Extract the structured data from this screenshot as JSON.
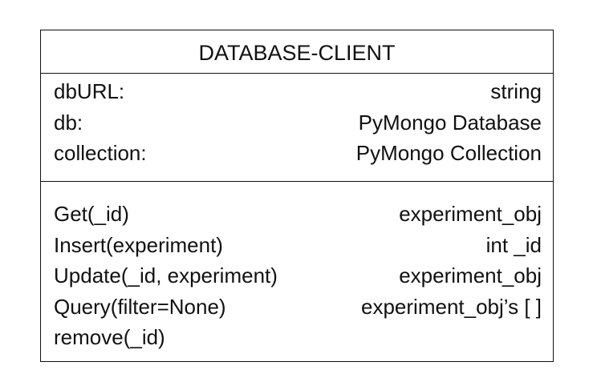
{
  "class_name": "DATABASE-CLIENT",
  "attributes": [
    {
      "name": "dbURL:",
      "type": "string"
    },
    {
      "name": "db:",
      "type": "PyMongo Database"
    },
    {
      "name": "collection:",
      "type": "PyMongo Collection"
    }
  ],
  "methods": [
    {
      "name": "Get(_id)",
      "returns": "experiment_obj"
    },
    {
      "name": "Insert(experiment)",
      "returns": "int _id"
    },
    {
      "name": "Update(_id, experiment)",
      "returns": "experiment_obj"
    },
    {
      "name": "Query(filter=None)",
      "returns": "experiment_obj’s [ ]"
    },
    {
      "name": "remove(_id)",
      "returns": ""
    }
  ]
}
